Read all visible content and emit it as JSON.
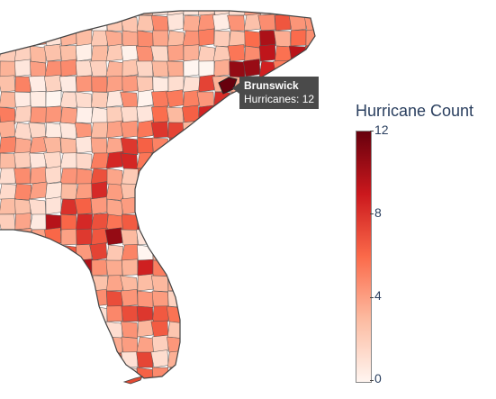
{
  "map": {
    "colorbar": {
      "title": "Hurricane Count",
      "ticks": [
        "12",
        "8",
        "4",
        "0"
      ],
      "min": 0,
      "max": 12,
      "colors": [
        "#fff5f0",
        "#fcbba1",
        "#fb6a4a",
        "#cb181d",
        "#67000d"
      ]
    },
    "tooltip": {
      "county": "Brunswick",
      "text": "Hurricanes: 12"
    },
    "colors": {
      "border": "#555555",
      "tooltip_bg": "#4a4a4a",
      "text": "#2a3f5f"
    }
  }
}
